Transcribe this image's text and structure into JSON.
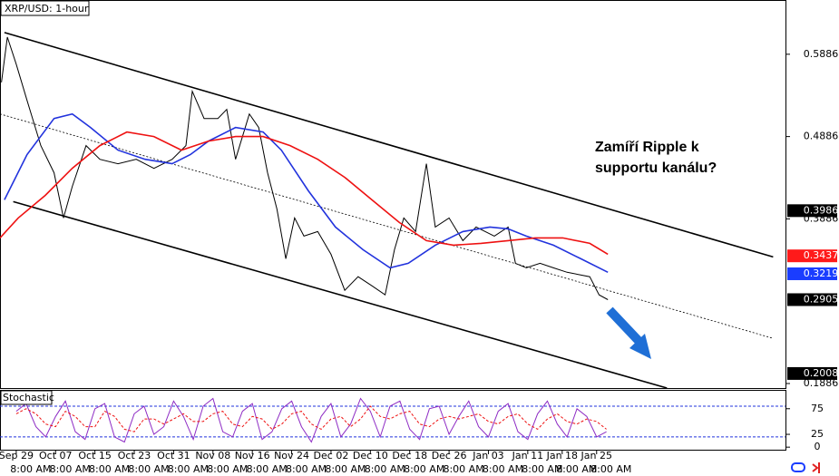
{
  "chart_data": [
    {
      "type": "line",
      "title": "XRP/USD: 1-hour",
      "annotation": [
        "Zamíří Ripple k",
        "supportu kanálu?"
      ],
      "xlim": [
        -3.3,
        156.4
      ],
      "ylim": [
        0.1831,
        0.6534
      ],
      "yticks": [
        0.5886,
        0.4886,
        0.3886,
        0.1886
      ],
      "series": [
        {
          "color": "#000000",
          "x": [
            -3,
            -1.8,
            0,
            2.2,
            5,
            7.7,
            9.6,
            11.4,
            14.2,
            17,
            20.7,
            24.4,
            28,
            31.7,
            34.5,
            35.8,
            38.2,
            41,
            42.8,
            44.6,
            47.4,
            49.3,
            51.1,
            53,
            54.8,
            56.6,
            58.5,
            61.3,
            64,
            66.8,
            69.5,
            72.3,
            75,
            76.9,
            78.8,
            81.2,
            83.4,
            85.2,
            88,
            90.8,
            93.5,
            97.2,
            100,
            101.5,
            103.7,
            106.5,
            109.2,
            112,
            116.6,
            118.5,
            120.3
          ],
          "values": [
            0.5545,
            0.6095,
            0.5765,
            0.5326,
            0.4776,
            0.4446,
            0.3897,
            0.428,
            0.4776,
            0.461,
            0.4556,
            0.461,
            0.45,
            0.461,
            0.4776,
            0.5436,
            0.5106,
            0.5106,
            0.5216,
            0.461,
            0.516,
            0.4996,
            0.4446,
            0.4006,
            0.3402,
            0.3897,
            0.3677,
            0.3732,
            0.3457,
            0.3018,
            0.3183,
            0.3073,
            0.2963,
            0.3512,
            0.3897,
            0.3732,
            0.4556,
            0.3787,
            0.3897,
            0.3622,
            0.3787,
            0.3677,
            0.3787,
            0.3347,
            0.3292,
            0.3347,
            0.3292,
            0.3238,
            0.3183,
            0.2963,
            0.2905
          ]
        },
        {
          "color": "#2233dd",
          "x": [
            -2.4,
            2.2,
            7.7,
            11.4,
            15.1,
            20.7,
            26.2,
            31.7,
            35.4,
            39.1,
            44.6,
            50.2,
            53.9,
            59.4,
            64.9,
            70.5,
            76,
            79.7,
            85.2,
            90.8,
            96.3,
            100,
            103.7,
            109.2,
            114.8,
            120.3
          ],
          "values": [
            0.4117,
            0.4667,
            0.5106,
            0.516,
            0.4996,
            0.4721,
            0.461,
            0.4556,
            0.4667,
            0.4831,
            0.4996,
            0.4941,
            0.4721,
            0.4227,
            0.3787,
            0.3512,
            0.3292,
            0.3347,
            0.3567,
            0.3732,
            0.3787,
            0.3765,
            0.3677,
            0.3567,
            0.3402,
            0.3238
          ]
        },
        {
          "color": "#ee1111",
          "x": [
            -3.3,
            0.4,
            5.9,
            11.4,
            17,
            22.5,
            28,
            33.6,
            39.1,
            44.6,
            50.2,
            55.7,
            61.3,
            66.8,
            72.3,
            77.9,
            83.4,
            88.9,
            94.5,
            100,
            105.5,
            111.1,
            116.6,
            120.3
          ],
          "values": [
            0.3655,
            0.3897,
            0.4171,
            0.4501,
            0.4776,
            0.4941,
            0.4886,
            0.4721,
            0.4831,
            0.4886,
            0.4886,
            0.4776,
            0.461,
            0.4391,
            0.4117,
            0.3842,
            0.3622,
            0.3567,
            0.3589,
            0.3622,
            0.3655,
            0.3655,
            0.3589,
            0.3457
          ]
        }
      ],
      "trend_lines": [
        {
          "x": [
            -2.4,
            153.9
          ],
          "values": [
            0.615,
            0.3424
          ],
          "style": "solid"
        },
        {
          "x": [
            -3.3,
            153.9
          ],
          "values": [
            0.5161,
            0.2435
          ],
          "style": "dotted"
        },
        {
          "x": [
            -0.6,
            132.3
          ],
          "values": [
            0.4095,
            0.1831
          ],
          "style": "solid"
        }
      ],
      "price_markers": [
        {
          "value": 0.3986,
          "color": "#000000"
        },
        {
          "value": 0.3437,
          "color": "#ff1a1a"
        },
        {
          "value": 0.3219,
          "color": "#1a3dff"
        },
        {
          "value": 0.2905,
          "color": "#000000"
        },
        {
          "value": 0.2008,
          "color": "#000000"
        }
      ]
    },
    {
      "type": "stochastic",
      "title": "Stochastic",
      "xlim": [
        -3.3,
        156.4
      ],
      "ylim": [
        -5,
        110
      ],
      "yticks": [
        75,
        25,
        0
      ],
      "levels": [
        20,
        80
      ],
      "xticks": [
        {
          "value": 0,
          "label": "Sep 29",
          "sub": "8:00 AM"
        },
        {
          "value": 8,
          "label": "Oct 07",
          "sub": "8:00 AM"
        },
        {
          "value": 16,
          "label": "Oct 15",
          "sub": "8:00 AM"
        },
        {
          "value": 24,
          "label": "Oct 23",
          "sub": "8:00 AM"
        },
        {
          "value": 32,
          "label": "Oct 31",
          "sub": "8:00 AM"
        },
        {
          "value": 40,
          "label": "Nov 08",
          "sub": "8:00 AM"
        },
        {
          "value": 48,
          "label": "Nov 16",
          "sub": "8:00 AM"
        },
        {
          "value": 56,
          "label": "Nov 24",
          "sub": "8:00 AM"
        },
        {
          "value": 64,
          "label": "Dec 02",
          "sub": "8:00 AM"
        },
        {
          "value": 72,
          "label": "Dec 10",
          "sub": "8:00 AM"
        },
        {
          "value": 80,
          "label": "Dec 18",
          "sub": "8:00 AM"
        },
        {
          "value": 88,
          "label": "Dec 26",
          "sub": "8:00 AM"
        },
        {
          "value": 96,
          "label": "Jan 03",
          "sub": "8:00 AM"
        },
        {
          "value": 104,
          "label": "Jan 11",
          "sub": "8:00 AM"
        },
        {
          "value": 111,
          "label": "Jan 18",
          "sub": "8:00 AM"
        },
        {
          "value": 118,
          "label": "Jan 25",
          "sub": "8:00 AM"
        }
      ],
      "x": [
        0,
        2,
        4,
        6,
        8,
        10,
        12,
        14,
        16,
        18,
        20,
        22,
        24,
        26,
        28,
        30,
        32,
        34,
        36,
        38,
        40,
        42,
        44,
        46,
        48,
        50,
        52,
        54,
        56,
        58,
        60,
        62,
        64,
        66,
        68,
        70,
        72,
        74,
        76,
        78,
        80,
        82,
        84,
        86,
        88,
        90,
        92,
        94,
        96,
        98,
        100,
        102,
        104,
        106,
        108,
        110,
        112,
        114,
        116,
        118,
        120
      ],
      "series": [
        {
          "color": "#8e2cc4",
          "style": "solid",
          "values": [
            70,
            85,
            40,
            20,
            60,
            90,
            30,
            15,
            75,
            85,
            20,
            10,
            65,
            80,
            25,
            40,
            90,
            60,
            15,
            80,
            95,
            30,
            20,
            70,
            85,
            15,
            30,
            75,
            90,
            40,
            10,
            60,
            85,
            20,
            45,
            95,
            70,
            20,
            80,
            90,
            35,
            15,
            75,
            80,
            25,
            60,
            90,
            40,
            20,
            70,
            85,
            30,
            15,
            65,
            90,
            45,
            20,
            75,
            60,
            20,
            30
          ]
        },
        {
          "color": "#ee1111",
          "style": "dashed",
          "values": [
            65,
            75,
            65,
            45,
            40,
            70,
            60,
            40,
            40,
            70,
            60,
            35,
            30,
            55,
            55,
            45,
            55,
            65,
            50,
            50,
            65,
            70,
            45,
            40,
            60,
            55,
            35,
            45,
            65,
            70,
            45,
            35,
            55,
            60,
            40,
            55,
            80,
            60,
            55,
            65,
            70,
            45,
            40,
            55,
            60,
            55,
            60,
            65,
            50,
            45,
            60,
            65,
            45,
            35,
            55,
            65,
            50,
            45,
            55,
            50,
            35
          ]
        }
      ]
    }
  ]
}
